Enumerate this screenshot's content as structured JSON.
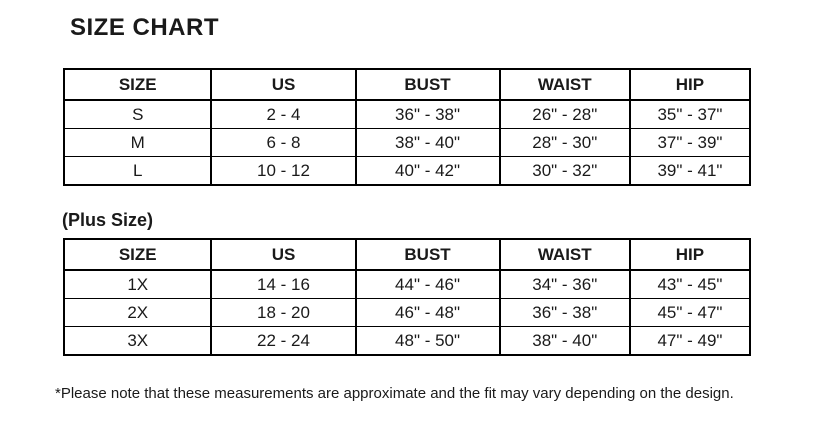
{
  "page": {
    "title": "SIZE CHART",
    "plus_size_label": "(Plus Size)",
    "footnote": "*Please note that these measurements are approximate and the fit may vary depending on the design.",
    "text_color": "#1a1a1a",
    "border_color": "#000000",
    "background_color": "#ffffff"
  },
  "tables": {
    "regular": {
      "headers": [
        "SIZE",
        "US",
        "BUST",
        "WAIST",
        "HIP"
      ],
      "rows": [
        [
          "S",
          "2 - 4",
          "36\" - 38\"",
          "26\" - 28\"",
          "35\" - 37\""
        ],
        [
          "M",
          "6 - 8",
          "38\" - 40\"",
          "28\" - 30\"",
          "37\" - 39\""
        ],
        [
          "L",
          "10 - 12",
          "40\" - 42\"",
          "30\" - 32\"",
          "39\" - 41\""
        ]
      ]
    },
    "plus": {
      "headers": [
        "SIZE",
        "US",
        "BUST",
        "WAIST",
        "HIP"
      ],
      "rows": [
        [
          "1X",
          "14 - 16",
          "44\" - 46\"",
          "34\" - 36\"",
          "43\" - 45\""
        ],
        [
          "2X",
          "18 - 20",
          "46\" - 48\"",
          "36\" - 38\"",
          "45\" - 47\""
        ],
        [
          "3X",
          "22 - 24",
          "48\" - 50\"",
          "38\" - 40\"",
          "47\" - 49\""
        ]
      ]
    }
  }
}
